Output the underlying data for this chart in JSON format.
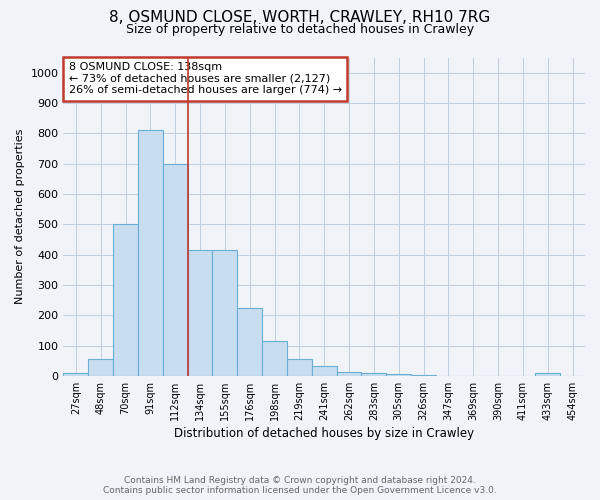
{
  "title1": "8, OSMUND CLOSE, WORTH, CRAWLEY, RH10 7RG",
  "title2": "Size of property relative to detached houses in Crawley",
  "xlabel": "Distribution of detached houses by size in Crawley",
  "ylabel": "Number of detached properties",
  "bar_labels": [
    "27sqm",
    "48sqm",
    "70sqm",
    "91sqm",
    "112sqm",
    "134sqm",
    "155sqm",
    "176sqm",
    "198sqm",
    "219sqm",
    "241sqm",
    "262sqm",
    "283sqm",
    "305sqm",
    "326sqm",
    "347sqm",
    "369sqm",
    "390sqm",
    "411sqm",
    "433sqm",
    "454sqm"
  ],
  "bar_values": [
    8,
    57,
    500,
    810,
    700,
    415,
    415,
    225,
    115,
    57,
    32,
    12,
    10,
    5,
    4,
    0,
    0,
    0,
    0,
    8,
    0
  ],
  "bar_color": "#c8ddf0",
  "bar_edge_color": "#6aadd5",
  "vline_x_index": 5,
  "vline_color": "#c0392b",
  "annotation_title": "8 OSMUND CLOSE: 138sqm",
  "annotation_line1": "← 73% of detached houses are smaller (2,127)",
  "annotation_line2": "26% of semi-detached houses are larger (774) →",
  "annotation_box_color": "#ffffff",
  "annotation_box_edge": "#c0392b",
  "ylim": [
    0,
    1050
  ],
  "yticks": [
    0,
    100,
    200,
    300,
    400,
    500,
    600,
    700,
    800,
    900,
    1000
  ],
  "footer1": "Contains HM Land Registry data © Crown copyright and database right 2024.",
  "footer2": "Contains public sector information licensed under the Open Government Licence v3.0.",
  "background_color": "#f0f4f8",
  "plot_bg_color": "#f0f4f8",
  "grid_color": "#c0cfe0",
  "title1_fontsize": 11,
  "title2_fontsize": 9
}
